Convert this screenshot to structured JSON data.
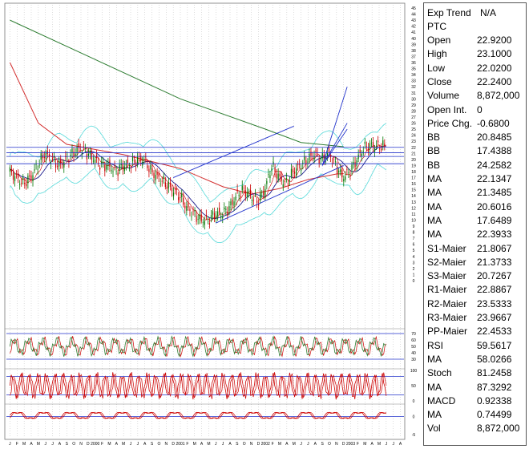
{
  "chart_data": {
    "type": "line",
    "instrument": "PTC",
    "study_title": "Exp Trend",
    "study_value": "N/A",
    "x_ticks": [
      "J",
      "F",
      "M",
      "A",
      "M",
      "J",
      "J",
      "A",
      "S",
      "O",
      "N",
      "D",
      "2000",
      "F",
      "M",
      "A",
      "M",
      "J",
      "J",
      "A",
      "S",
      "O",
      "N",
      "D",
      "2001",
      "F",
      "M",
      "A",
      "M",
      "J",
      "J",
      "A",
      "S",
      "O",
      "N",
      "D",
      "2002",
      "F",
      "M",
      "A",
      "M",
      "J",
      "J",
      "A",
      "S",
      "O",
      "N",
      "D",
      "2003",
      "F",
      "M",
      "A",
      "M",
      "J",
      "J",
      "A"
    ],
    "price_axis": [
      45,
      44,
      43,
      42,
      41,
      40,
      39,
      38,
      37,
      36,
      35,
      34,
      33,
      32,
      31,
      30,
      29,
      28,
      27,
      26,
      25,
      24,
      23,
      22,
      21,
      20,
      19,
      18,
      17,
      16,
      15,
      14,
      13,
      12,
      11,
      10,
      9,
      8,
      7,
      6,
      5,
      4,
      3,
      2,
      1,
      0
    ],
    "rsi_axis": [
      70,
      60,
      50,
      40,
      30
    ],
    "stoch_axis": [
      100,
      50,
      0
    ],
    "macd_axis": [
      0,
      -5
    ],
    "ylim": [
      0,
      45
    ],
    "price_series": {
      "months": [
        0,
        1,
        2,
        3,
        4,
        5,
        6,
        7,
        8,
        9,
        10,
        11,
        12,
        13,
        14,
        15,
        16,
        17,
        18,
        19,
        20,
        21,
        22,
        23,
        24,
        25,
        26,
        27,
        28,
        29,
        30,
        31,
        32,
        33,
        34,
        35,
        36,
        37,
        38,
        39,
        40,
        41,
        42,
        43,
        44,
        45,
        46,
        47,
        48,
        49,
        50,
        51,
        52,
        53
      ],
      "close": [
        18,
        17,
        16,
        17,
        19,
        21,
        20,
        19,
        20,
        21,
        22,
        21,
        20,
        19,
        19,
        18,
        19,
        19,
        20,
        20,
        18,
        17,
        16,
        15,
        14,
        12,
        11,
        10,
        10,
        11,
        11,
        12,
        14,
        15,
        14,
        13,
        15,
        19,
        17,
        16,
        18,
        19,
        20,
        21,
        20,
        21,
        19,
        17,
        18,
        20,
        22,
        22.24,
        22.2,
        22.2
      ]
    },
    "ma_long": {
      "name": "MA",
      "points": [
        [
          0,
          43
        ],
        [
          12,
          36.5
        ],
        [
          24,
          30
        ],
        [
          36,
          25
        ],
        [
          41,
          22.8
        ],
        [
          47,
          22.1
        ]
      ]
    },
    "ma_mid": {
      "name": "MA",
      "points": [
        [
          0,
          36
        ],
        [
          4,
          26
        ],
        [
          8,
          22.5
        ],
        [
          16,
          20.8
        ],
        [
          24,
          18.5
        ],
        [
          30,
          15.5
        ],
        [
          34,
          14.3
        ],
        [
          38,
          15.2
        ],
        [
          42,
          16.7
        ],
        [
          46,
          17.6
        ],
        [
          47,
          17.65
        ]
      ]
    },
    "trend_channel": {
      "upper": [
        [
          23,
          17
        ],
        [
          40,
          25.5
        ]
      ],
      "lower": [
        [
          29,
          9.5
        ],
        [
          47,
          19
        ]
      ]
    },
    "horizontal_levels": [
      22.0,
      21.1,
      20.5,
      19.3
    ],
    "expansion_lines": [
      [
        [
          44,
          19
        ],
        [
          47.5,
          32
        ]
      ],
      [
        [
          44,
          19
        ],
        [
          47.5,
          26
        ]
      ],
      [
        [
          44,
          19
        ],
        [
          47.5,
          25
        ]
      ]
    ],
    "rsi": {
      "value": 59.5617,
      "ma": 58.0266,
      "levels": [
        70,
        30
      ]
    },
    "stoch": {
      "value": 81.2458,
      "ma": 87.3292,
      "levels": [
        80,
        20
      ]
    },
    "macd": {
      "value": 0.92338,
      "ma": 0.74499,
      "level": 0
    }
  },
  "panel": {
    "title_label": "Exp Trend",
    "title_value": "N/A",
    "symbol": "PTC",
    "rows": [
      {
        "label": "Open",
        "value": "22.9200"
      },
      {
        "label": "High",
        "value": "23.1000"
      },
      {
        "label": "Low",
        "value": "22.0200"
      },
      {
        "label": "Close",
        "value": "22.2400"
      },
      {
        "label": "Volume",
        "value": "8,872,000"
      },
      {
        "label": "Open Int.",
        "value": "0"
      },
      {
        "label": "Price Chg.",
        "value": "-0.6800"
      },
      {
        "label": "BB",
        "value": "20.8485"
      },
      {
        "label": "BB",
        "value": "17.4388"
      },
      {
        "label": "BB",
        "value": "24.2582"
      },
      {
        "label": "MA",
        "value": "22.1347"
      },
      {
        "label": "MA",
        "value": "21.3485"
      },
      {
        "label": "MA",
        "value": "20.6016"
      },
      {
        "label": "MA",
        "value": "17.6489"
      },
      {
        "label": "MA",
        "value": "22.3933"
      },
      {
        "label": "S1-Maier",
        "value": "21.8067"
      },
      {
        "label": "S2-Maier",
        "value": "21.3733"
      },
      {
        "label": "S3-Maier",
        "value": "20.7267"
      },
      {
        "label": "R1-Maier",
        "value": "22.8867"
      },
      {
        "label": "R2-Maier",
        "value": "23.5333"
      },
      {
        "label": "R3-Maier",
        "value": "23.9667"
      },
      {
        "label": "PP-Maier",
        "value": "22.4533"
      },
      {
        "label": "RSI",
        "value": "59.5617"
      },
      {
        "label": "MA",
        "value": "58.0266"
      },
      {
        "label": "Stoch",
        "value": "81.2458"
      },
      {
        "label": "MA",
        "value": "87.3292"
      },
      {
        "label": "MACD",
        "value": "0.92338"
      },
      {
        "label": "MA",
        "value": "0.74499"
      },
      {
        "label": "Vol",
        "value": "8,872,000"
      }
    ]
  },
  "colors": {
    "candle_up": "#007700",
    "candle_down": "#cc0000",
    "ma_long": "#2e7d32",
    "ma_mid": "#d32f2f",
    "ma_short": "#1a1a8c",
    "band": "#66dddd",
    "trend": "#2233cc",
    "grid": "#bbbbbb"
  }
}
